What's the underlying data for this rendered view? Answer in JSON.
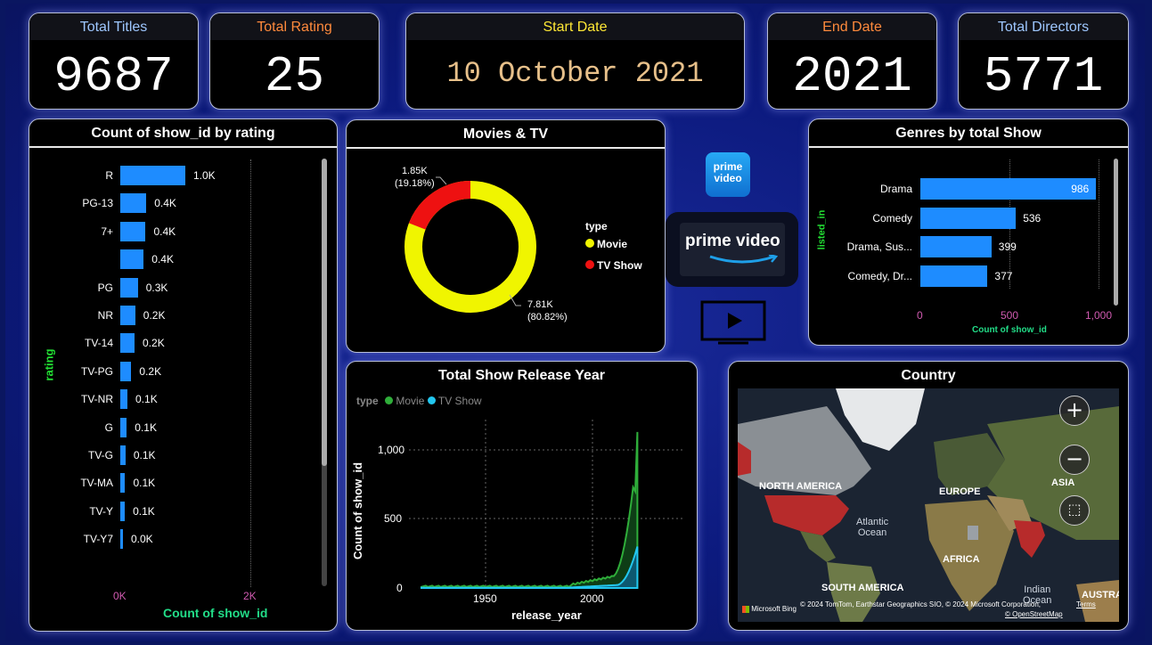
{
  "kpis": [
    {
      "title": "Total Titles",
      "value": "9687",
      "color": "#9ec7ff"
    },
    {
      "title": "Total Rating",
      "value": "25",
      "color": "#ff8a3c"
    },
    {
      "title": "Start Date",
      "value": "10 October 2021",
      "color": "#ffe835"
    },
    {
      "title": "End Date",
      "value": "2021",
      "color": "#ff8a3c"
    },
    {
      "title": "Total Directors",
      "value": "5771",
      "color": "#9ec7ff"
    }
  ],
  "rating_chart": {
    "title": "Count of show_id by rating",
    "ylabel": "rating",
    "xlabel": "Count of show_id",
    "xticks": [
      "0K",
      "2K"
    ],
    "bar_color": "#1e8cff",
    "rows": [
      {
        "label": "R",
        "value": 1000,
        "text": "1.0K"
      },
      {
        "label": "PG-13",
        "value": 400,
        "text": "0.4K"
      },
      {
        "label": "7+",
        "value": 390,
        "text": "0.4K"
      },
      {
        "label": "",
        "value": 360,
        "text": "0.4K"
      },
      {
        "label": "PG",
        "value": 270,
        "text": "0.3K"
      },
      {
        "label": "NR",
        "value": 230,
        "text": "0.2K"
      },
      {
        "label": "TV-14",
        "value": 220,
        "text": "0.2K"
      },
      {
        "label": "TV-PG",
        "value": 170,
        "text": "0.2K"
      },
      {
        "label": "TV-NR",
        "value": 110,
        "text": "0.1K"
      },
      {
        "label": "G",
        "value": 100,
        "text": "0.1K"
      },
      {
        "label": "TV-G",
        "value": 80,
        "text": "0.1K"
      },
      {
        "label": "TV-MA",
        "value": 75,
        "text": "0.1K"
      },
      {
        "label": "TV-Y",
        "value": 70,
        "text": "0.1K"
      },
      {
        "label": "TV-Y7",
        "value": 40,
        "text": "0.0K"
      }
    ]
  },
  "donut": {
    "title": "Movies & TV",
    "legend_title": "type",
    "slices": [
      {
        "name": "Movie",
        "value": 7810,
        "label": "7.81K",
        "pct": "(80.82%)",
        "color": "#f0f500"
      },
      {
        "name": "TV Show",
        "value": 1850,
        "label": "1.85K",
        "pct": "(19.18%)",
        "color": "#ee1111"
      }
    ]
  },
  "genres": {
    "title": "Genres by total Show",
    "ylabel": "listed_in",
    "xlabel": "Count of show_id",
    "xticks": [
      "0",
      "500",
      "1,000"
    ],
    "rows": [
      {
        "label": "Drama",
        "value": 986,
        "text": "986"
      },
      {
        "label": "Comedy",
        "value": 536,
        "text": "536"
      },
      {
        "label": "Drama, Sus...",
        "value": 399,
        "text": "399"
      },
      {
        "label": "Comedy, Dr...",
        "value": 377,
        "text": "377"
      }
    ]
  },
  "release": {
    "title": "Total Show Release Year",
    "legend_title": "type",
    "legend": [
      {
        "name": "Movie",
        "color": "#2fae3a"
      },
      {
        "name": "TV Show",
        "color": "#22c7f0"
      }
    ],
    "ylabel": "Count of show_id",
    "xlabel": "release_year",
    "yticks": [
      "0",
      "500",
      "1,000"
    ],
    "xticks": [
      "1950",
      "2000"
    ]
  },
  "map": {
    "title": "Country",
    "labels": {
      "na": "NORTH AMERICA",
      "eu": "EUROPE",
      "asia": "ASIA",
      "atl": "Atlantic\nOcean",
      "af": "AFRICA",
      "sa": "SOUTH AMERICA",
      "ind": "Indian\nOcean",
      "aus": "AUSTRA"
    },
    "attribution": "© 2024 TomTom, Earthstar Geographics SIO, © 2024 Microsoft Corporation,",
    "terms": "Terms",
    "osm": "© OpenStreetMap",
    "bing": "Microsoft Bing"
  },
  "logo": {
    "line1": "prime",
    "line2": "video",
    "main": "prime video"
  }
}
